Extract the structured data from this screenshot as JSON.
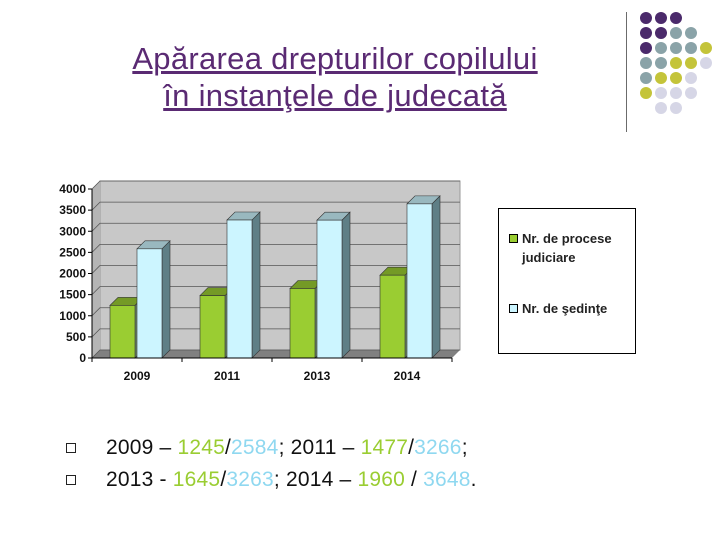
{
  "title": {
    "line1": "Apărarea drepturilor copilului",
    "line2": "în instanţele de judecată"
  },
  "colors": {
    "title": "#5a2a73",
    "green": "#9acd32",
    "blue": "#ccf5ff",
    "dot_purple": "#4b2a6b",
    "dot_gray": "#8aa3a8",
    "dot_olive": "#c4c43a",
    "dot_light": "#d6d6e6"
  },
  "chart_data": {
    "type": "bar",
    "categories": [
      "2009",
      "2011",
      "2013",
      "2014"
    ],
    "series": [
      {
        "name": "Nr. de procese judiciare",
        "values": [
          1245,
          1477,
          1645,
          1960
        ],
        "color": "#9acd32"
      },
      {
        "name": "Nr. de şedinţe",
        "values": [
          2584,
          3266,
          3263,
          3648
        ],
        "color": "#ccf5ff"
      }
    ],
    "yticks": [
      "0",
      "500",
      "1000",
      "1500",
      "2000",
      "2500",
      "3000",
      "3500",
      "4000"
    ],
    "ylim": [
      0,
      4000
    ],
    "grid": true,
    "legend_position": "right",
    "three_d": true
  },
  "legend": {
    "item1": {
      "line1": "Nr. de procese",
      "line2": "judiciare"
    },
    "item2": {
      "line1": "Nr. de şedinţe"
    }
  },
  "bullets": {
    "line1": {
      "y1": "2009 – ",
      "v1a": "1245",
      "s1": "/",
      "v1b": "2584",
      "sep": ";  ",
      "y2": "2011 – ",
      "v2a": "1477",
      "s2": "/",
      "v2b": "3266",
      "end": ";"
    },
    "line2": {
      "y1": "2013 - ",
      "v1a": "1645",
      "s1": "/",
      "v1b": "3263",
      "sep": "; ",
      "y2": "2014 – ",
      "v2a": "1960",
      "s2": " / ",
      "v2b": "3648",
      "end": "."
    }
  }
}
